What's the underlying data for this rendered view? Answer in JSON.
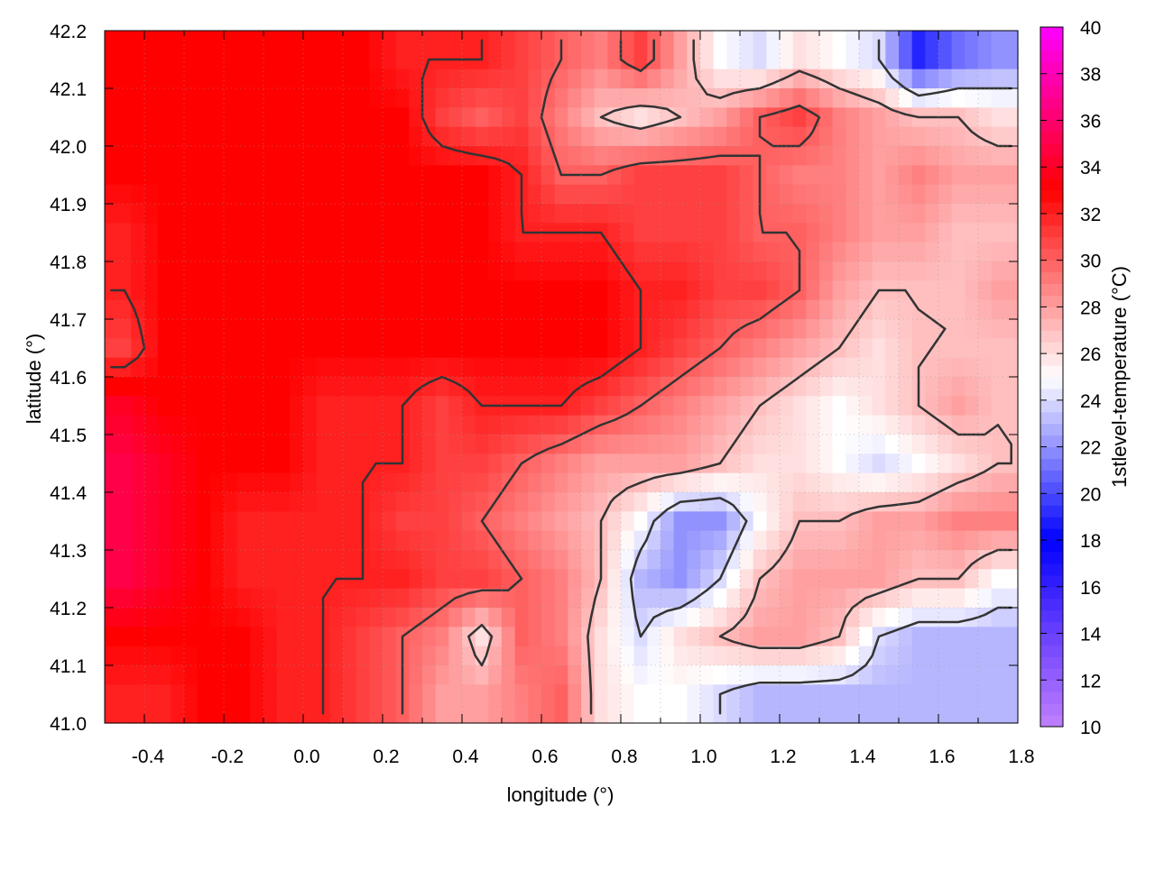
{
  "chart_data": {
    "type": "heatmap",
    "title": "",
    "xlabel": "longitude (°)",
    "ylabel": "latitude (°)",
    "colorbar_label": "1stlevel-temperature (°C)",
    "xlim": [
      -0.5,
      1.8
    ],
    "ylim": [
      41.0,
      42.2
    ],
    "zlim": [
      10,
      40
    ],
    "grid": true,
    "x_ticks": [
      "-0.4",
      "-0.2",
      "0.0",
      "0.2",
      "0.4",
      "0.6",
      "0.8",
      "1.0",
      "1.2",
      "1.4",
      "1.6",
      "1.8"
    ],
    "y_ticks": [
      "41.0",
      "41.1",
      "41.2",
      "41.3",
      "41.4",
      "41.5",
      "41.6",
      "41.7",
      "41.8",
      "41.9",
      "42.0",
      "42.1",
      "42.2"
    ],
    "colorbar_ticks": [
      "10",
      "12",
      "14",
      "16",
      "18",
      "20",
      "22",
      "24",
      "26",
      "28",
      "30",
      "32",
      "34",
      "36",
      "38",
      "40"
    ],
    "palette": [
      [
        10,
        "#c080ff"
      ],
      [
        14,
        "#6a40ff"
      ],
      [
        18,
        "#0000ff"
      ],
      [
        25,
        "#ffffff"
      ],
      [
        33,
        "#ff0000"
      ],
      [
        40,
        "#ff00ff"
      ]
    ],
    "contour_color": "#333333",
    "contour_levels": [
      24,
      27,
      30,
      32
    ],
    "lon": [
      -0.45,
      -0.35,
      -0.25,
      -0.15,
      -0.05,
      0.05,
      0.15,
      0.25,
      0.35,
      0.45,
      0.55,
      0.65,
      0.75,
      0.85,
      0.95,
      1.05,
      1.15,
      1.25,
      1.35,
      1.45,
      1.55,
      1.65,
      1.75
    ],
    "lat": [
      42.15,
      42.05,
      41.95,
      41.85,
      41.75,
      41.65,
      41.55,
      41.45,
      41.35,
      41.25,
      41.15,
      41.05
    ],
    "values": [
      [
        33,
        33,
        33,
        33,
        33,
        33,
        33,
        32,
        32,
        32,
        31,
        30,
        29,
        31,
        28,
        25,
        24,
        26,
        25,
        24,
        19,
        21,
        22
      ],
      [
        33,
        33,
        33,
        33,
        33,
        33,
        33,
        33,
        31,
        30,
        31,
        29,
        27,
        26,
        27,
        28,
        30,
        31,
        29,
        28,
        27,
        27,
        26
      ],
      [
        33,
        33,
        33,
        33,
        33,
        33,
        33,
        33,
        33,
        33,
        32,
        30,
        30,
        31,
        31,
        31,
        30,
        29,
        29,
        28,
        29,
        28,
        28
      ],
      [
        32,
        33,
        33,
        33,
        33,
        33,
        33,
        33,
        33,
        33,
        32,
        32,
        32,
        31,
        31,
        31,
        30,
        30,
        29,
        28,
        28,
        27,
        27
      ],
      [
        32,
        33,
        33,
        33,
        33,
        33,
        33,
        33,
        33,
        33,
        33,
        33,
        33,
        32,
        32,
        31,
        31,
        30,
        28,
        27,
        27,
        27,
        28
      ],
      [
        31,
        33,
        33,
        33,
        33,
        33,
        33,
        33,
        33,
        33,
        33,
        33,
        33,
        32,
        31,
        30,
        29,
        28,
        27,
        26,
        27,
        27,
        27
      ],
      [
        34,
        33,
        33,
        33,
        33,
        32,
        32,
        32,
        31,
        32,
        32,
        32,
        31,
        30,
        29,
        28,
        27,
        26,
        25,
        26,
        27,
        28,
        27
      ],
      [
        35,
        34,
        33,
        33,
        33,
        32,
        32,
        32,
        31,
        31,
        30,
        29,
        28,
        28,
        28,
        27,
        26,
        26,
        25,
        24,
        25,
        26,
        27
      ],
      [
        35,
        34,
        33,
        32,
        32,
        32,
        32,
        31,
        31,
        30,
        29,
        28,
        27,
        25,
        22,
        22,
        25,
        27,
        27,
        28,
        28,
        29,
        29
      ],
      [
        35,
        34,
        33,
        32,
        32,
        32,
        32,
        32,
        31,
        31,
        30,
        29,
        27,
        23,
        22,
        24,
        27,
        28,
        28,
        28,
        27,
        27,
        25
      ],
      [
        33,
        33,
        33,
        33,
        32,
        32,
        31,
        30,
        29,
        26,
        30,
        29,
        26,
        24,
        26,
        27,
        28,
        28,
        27,
        24,
        23,
        23,
        23
      ],
      [
        32,
        32,
        33,
        33,
        32,
        32,
        31,
        30,
        28,
        28,
        29,
        30,
        26,
        25,
        25,
        24,
        23,
        23,
        23,
        23,
        23,
        23,
        23
      ]
    ]
  }
}
